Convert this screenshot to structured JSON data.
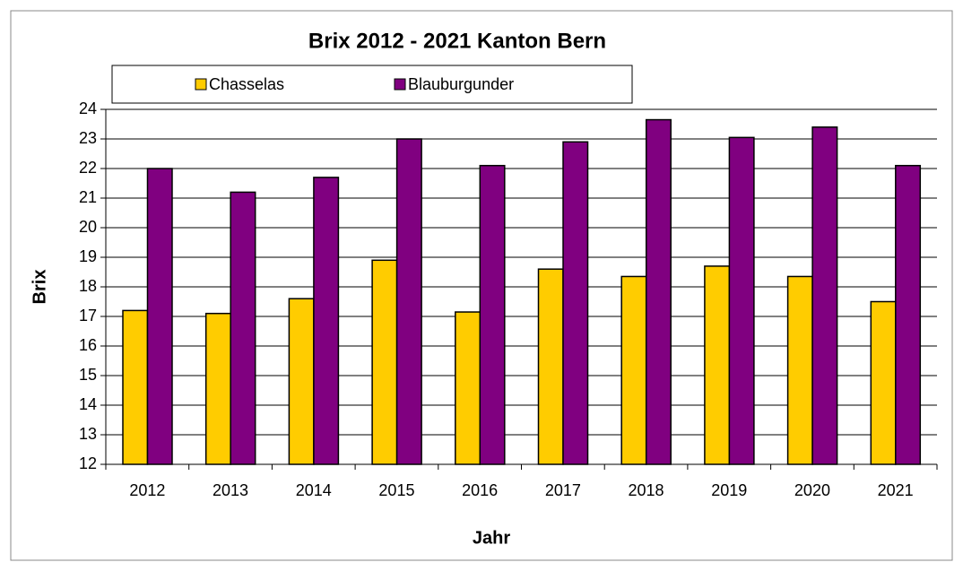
{
  "chart_data": {
    "type": "bar",
    "title": "Brix 2012 - 2021  Kanton Bern",
    "xlabel": "Jahr",
    "ylabel": "Brix",
    "categories": [
      "2012",
      "2013",
      "2014",
      "2015",
      "2016",
      "2017",
      "2018",
      "2019",
      "2020",
      "2021"
    ],
    "series": [
      {
        "name": "Chasselas",
        "color": "#FFCC00",
        "values": [
          17.2,
          17.1,
          17.6,
          18.9,
          17.15,
          18.6,
          18.35,
          18.7,
          18.35,
          17.5
        ]
      },
      {
        "name": "Blauburgunder",
        "color": "#800080",
        "values": [
          22.0,
          21.2,
          21.7,
          23.0,
          22.1,
          22.9,
          23.65,
          23.05,
          23.4,
          22.1
        ]
      }
    ],
    "ylim": [
      12,
      24
    ],
    "yticks": [
      12,
      13,
      14,
      15,
      16,
      17,
      18,
      19,
      20,
      21,
      22,
      23,
      24
    ],
    "grid": true,
    "legend": "top"
  }
}
